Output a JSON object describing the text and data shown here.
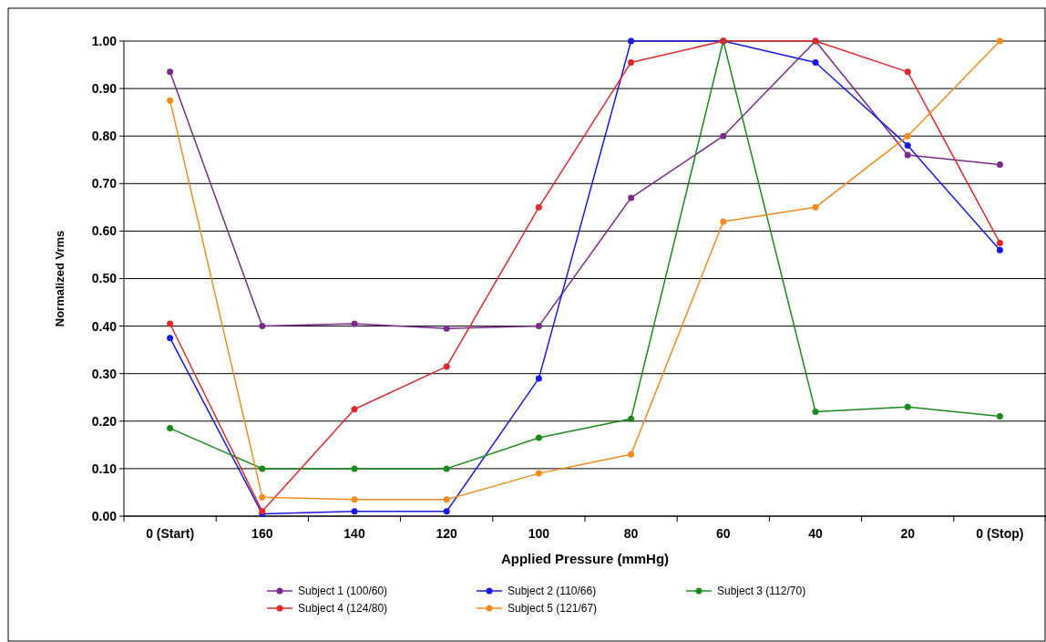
{
  "chart_data": {
    "type": "line",
    "xlabel": "Applied Pressure (mmHg)",
    "ylabel": "Normalized Vrms",
    "categories": [
      "0 (Start)",
      "160",
      "140",
      "120",
      "100",
      "80",
      "60",
      "40",
      "20",
      "0 (Stop)"
    ],
    "series": [
      {
        "name": "Subject 1 (100/60)",
        "color": "#7b2a8c",
        "values": [
          0.935,
          0.4,
          0.405,
          0.395,
          0.4,
          0.67,
          0.8,
          1.0,
          0.76,
          0.74
        ]
      },
      {
        "name": "Subject 2 (110/66)",
        "color": "#1a1adc",
        "values": [
          0.375,
          0.005,
          0.01,
          0.01,
          0.29,
          1.0,
          1.0,
          0.955,
          0.78,
          0.56
        ]
      },
      {
        "name": "Subject 3 (112/70)",
        "color": "#1a8a1a",
        "values": [
          0.185,
          0.1,
          0.1,
          0.1,
          0.165,
          0.205,
          1.0,
          0.22,
          0.23,
          0.21
        ]
      },
      {
        "name": "Subject 4 (124/80)",
        "color": "#dc2a2a",
        "values": [
          0.405,
          0.01,
          0.225,
          0.315,
          0.65,
          0.955,
          1.0,
          1.0,
          0.935,
          0.575
        ]
      },
      {
        "name": "Subject 5 (121/67)",
        "color": "#f08c1e",
        "values": [
          0.875,
          0.04,
          0.035,
          0.035,
          0.09,
          0.13,
          0.62,
          0.65,
          0.8,
          1.0
        ]
      }
    ],
    "ylim": [
      0,
      1
    ],
    "yticks": [
      {
        "value": 0,
        "label": "0.00"
      },
      {
        "value": 0.1,
        "label": "0.10"
      },
      {
        "value": 0.2,
        "label": "0.20"
      },
      {
        "value": 0.3,
        "label": "0.30"
      },
      {
        "value": 0.4,
        "label": "0.40"
      },
      {
        "value": 0.5,
        "label": "0.50"
      },
      {
        "value": 0.6,
        "label": "0.60"
      },
      {
        "value": 0.7,
        "label": "0.70"
      },
      {
        "value": 0.8,
        "label": "0.80"
      },
      {
        "value": 0.9,
        "label": "0.90"
      },
      {
        "value": 1,
        "label": "1.00"
      }
    ],
    "grid": "y",
    "legend": "bottom",
    "marker": "circle",
    "line_style": "solid"
  }
}
